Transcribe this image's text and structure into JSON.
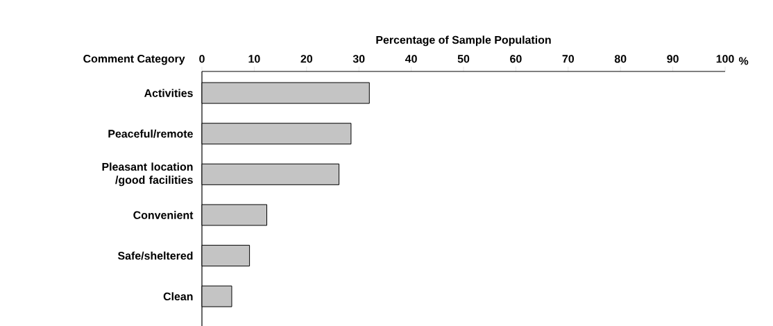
{
  "chart_data": {
    "type": "bar",
    "orientation": "horizontal",
    "xlabel": "Percentage of Sample Population",
    "ylabel": "Comment Category",
    "annotations": [
      "%"
    ],
    "categories": [
      "Activities",
      "Peaceful/remote",
      "Pleasant location /good facilities",
      "Convenient",
      "Safe/sheltered",
      "Clean"
    ],
    "values": [
      32.0,
      28.5,
      26.2,
      12.4,
      9.1,
      5.7
    ],
    "color": "#c4c4c4",
    "xlim": [
      0,
      100
    ],
    "xticks": [
      0,
      10,
      20,
      30,
      40,
      50,
      60,
      70,
      80,
      90,
      100
    ]
  }
}
